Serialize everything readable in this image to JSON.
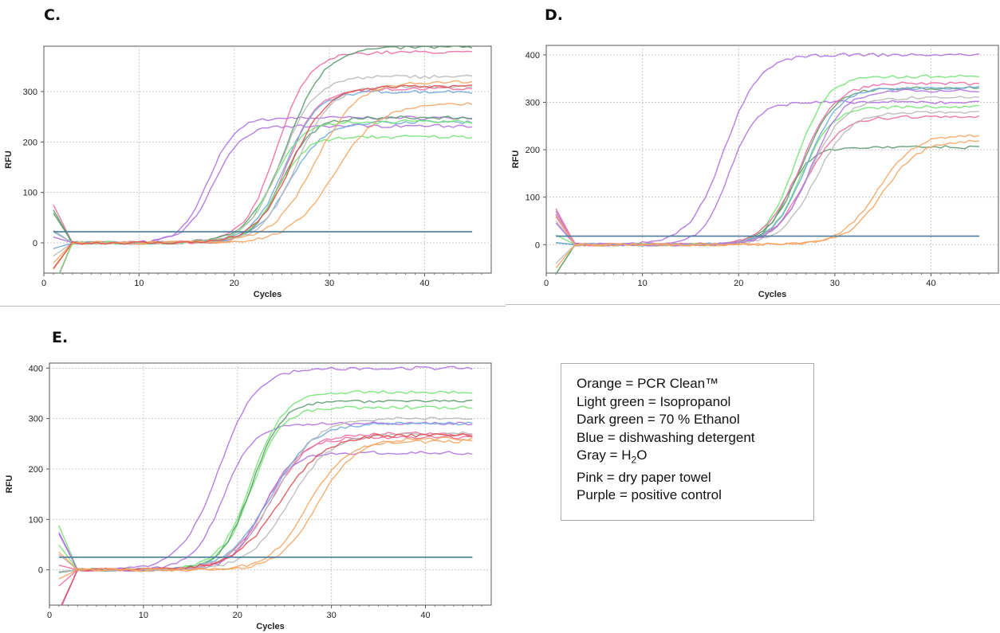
{
  "panels": [
    {
      "label": "C."
    },
    {
      "label": "D."
    },
    {
      "label": "E."
    }
  ],
  "legend": [
    {
      "pre": "Orange = PCR Clean™",
      "sub": "",
      "post": ""
    },
    {
      "pre": "Light green = Isopropanol",
      "sub": "",
      "post": ""
    },
    {
      "pre": "Dark green = 70 % Ethanol",
      "sub": "",
      "post": ""
    },
    {
      "pre": "Blue = dishwashing detergent",
      "sub": "",
      "post": ""
    },
    {
      "pre": "Gray = H",
      "sub": "2",
      "post": "O"
    },
    {
      "pre": "Pink = dry paper towel",
      "sub": "",
      "post": ""
    },
    {
      "pre": "Purple = positive control",
      "sub": "",
      "post": ""
    }
  ],
  "colors": {
    "orange": "#f4a460",
    "light_green": "#72e572",
    "dark_green": "#5a9a6a",
    "blue": "#6fa8dc",
    "gray": "#b8b8b8",
    "pink": "#ef6aa2",
    "red": "#e05050",
    "purple": "#b070e0",
    "threshold": "#4a7a9a"
  },
  "chart_data": [
    {
      "type": "line",
      "panel": "C.",
      "xlabel": "Cycles",
      "ylabel": "RFU",
      "xlim": [
        0,
        47
      ],
      "ylim": [
        -60,
        390
      ],
      "xticks": [
        0,
        10,
        20,
        30,
        40
      ],
      "yticks": [
        0,
        100,
        200,
        300
      ],
      "grid": true,
      "threshold": 22,
      "series": [
        {
          "color": "purple",
          "ct": 17.3,
          "plateau": 248,
          "slope": 1.4
        },
        {
          "color": "purple",
          "ct": 17.8,
          "plateau": 232,
          "slope": 1.5
        },
        {
          "color": "pink",
          "ct": 24.5,
          "plateau": 378,
          "slope": 1.7
        },
        {
          "color": "pink",
          "ct": 25.5,
          "plateau": 305,
          "slope": 1.6
        },
        {
          "color": "dark_green",
          "ct": 25.5,
          "plateau": 388,
          "slope": 2.0
        },
        {
          "color": "dark_green",
          "ct": 25.0,
          "plateau": 248,
          "slope": 1.6
        },
        {
          "color": "blue",
          "ct": 25.3,
          "plateau": 300,
          "slope": 1.7
        },
        {
          "color": "blue",
          "ct": 25.8,
          "plateau": 240,
          "slope": 1.8
        },
        {
          "color": "light_green",
          "ct": 24.5,
          "plateau": 210,
          "slope": 1.5
        },
        {
          "color": "light_green",
          "ct": 24.0,
          "plateau": 240,
          "slope": 1.6
        },
        {
          "color": "gray",
          "ct": 25.0,
          "plateau": 330,
          "slope": 1.8
        },
        {
          "color": "gray",
          "ct": 26.5,
          "plateau": 310,
          "slope": 1.8
        },
        {
          "color": "orange",
          "ct": 28.5,
          "plateau": 320,
          "slope": 2.2
        },
        {
          "color": "orange",
          "ct": 30.5,
          "plateau": 275,
          "slope": 2.3
        },
        {
          "color": "red",
          "ct": 26.0,
          "plateau": 310,
          "slope": 1.9
        }
      ]
    },
    {
      "type": "line",
      "panel": "D.",
      "xlabel": "Cycles",
      "ylabel": "RFU",
      "xlim": [
        0,
        47
      ],
      "ylim": [
        -60,
        420
      ],
      "xticks": [
        0,
        10,
        20,
        30,
        40
      ],
      "yticks": [
        0,
        100,
        200,
        300,
        400
      ],
      "grid": true,
      "threshold": 18,
      "series": [
        {
          "color": "purple",
          "ct": 18.5,
          "plateau": 400,
          "slope": 1.8
        },
        {
          "color": "purple",
          "ct": 19.0,
          "plateau": 300,
          "slope": 1.4
        },
        {
          "color": "light_green",
          "ct": 26.0,
          "plateau": 355,
          "slope": 1.6
        },
        {
          "color": "light_green",
          "ct": 26.5,
          "plateau": 290,
          "slope": 1.6
        },
        {
          "color": "dark_green",
          "ct": 26.5,
          "plateau": 330,
          "slope": 1.7
        },
        {
          "color": "dark_green",
          "ct": 25.0,
          "plateau": 205,
          "slope": 1.3
        },
        {
          "color": "pink",
          "ct": 26.5,
          "plateau": 340,
          "slope": 1.8
        },
        {
          "color": "pink",
          "ct": 27.0,
          "plateau": 270,
          "slope": 1.8
        },
        {
          "color": "blue",
          "ct": 27.0,
          "plateau": 330,
          "slope": 1.7
        },
        {
          "color": "gray",
          "ct": 27.5,
          "plateau": 310,
          "slope": 1.8
        },
        {
          "color": "gray",
          "ct": 28.0,
          "plateau": 280,
          "slope": 1.8
        },
        {
          "color": "purple",
          "ct": 27.5,
          "plateau": 325,
          "slope": 1.7
        },
        {
          "color": "orange",
          "ct": 34.5,
          "plateau": 232,
          "slope": 1.9
        },
        {
          "color": "orange",
          "ct": 35.0,
          "plateau": 220,
          "slope": 1.9
        }
      ]
    },
    {
      "type": "line",
      "panel": "E.",
      "xlabel": "Cycles",
      "ylabel": "RFU",
      "xlim": [
        0,
        47
      ],
      "ylim": [
        -70,
        410
      ],
      "xticks": [
        0,
        10,
        20,
        30,
        40
      ],
      "yticks": [
        0,
        100,
        200,
        300,
        400
      ],
      "grid": true,
      "threshold": 25,
      "series": [
        {
          "color": "purple",
          "ct": 18.0,
          "plateau": 400,
          "slope": 2.0
        },
        {
          "color": "purple",
          "ct": 18.5,
          "plateau": 290,
          "slope": 1.6
        },
        {
          "color": "light_green",
          "ct": 21.5,
          "plateau": 352,
          "slope": 1.7
        },
        {
          "color": "light_green",
          "ct": 21.5,
          "plateau": 322,
          "slope": 1.6
        },
        {
          "color": "dark_green",
          "ct": 21.5,
          "plateau": 335,
          "slope": 1.6
        },
        {
          "color": "pink",
          "ct": 23.5,
          "plateau": 270,
          "slope": 2.0
        },
        {
          "color": "pink",
          "ct": 23.0,
          "plateau": 262,
          "slope": 1.9
        },
        {
          "color": "purple",
          "ct": 22.5,
          "plateau": 232,
          "slope": 1.6
        },
        {
          "color": "blue",
          "ct": 23.5,
          "plateau": 290,
          "slope": 2.2
        },
        {
          "color": "gray",
          "ct": 24.0,
          "plateau": 300,
          "slope": 2.2
        },
        {
          "color": "gray",
          "ct": 25.5,
          "plateau": 270,
          "slope": 2.2
        },
        {
          "color": "red",
          "ct": 24.5,
          "plateau": 268,
          "slope": 2.4
        },
        {
          "color": "orange",
          "ct": 27.5,
          "plateau": 255,
          "slope": 2.0
        },
        {
          "color": "orange",
          "ct": 28.5,
          "plateau": 260,
          "slope": 2.0
        }
      ]
    }
  ]
}
